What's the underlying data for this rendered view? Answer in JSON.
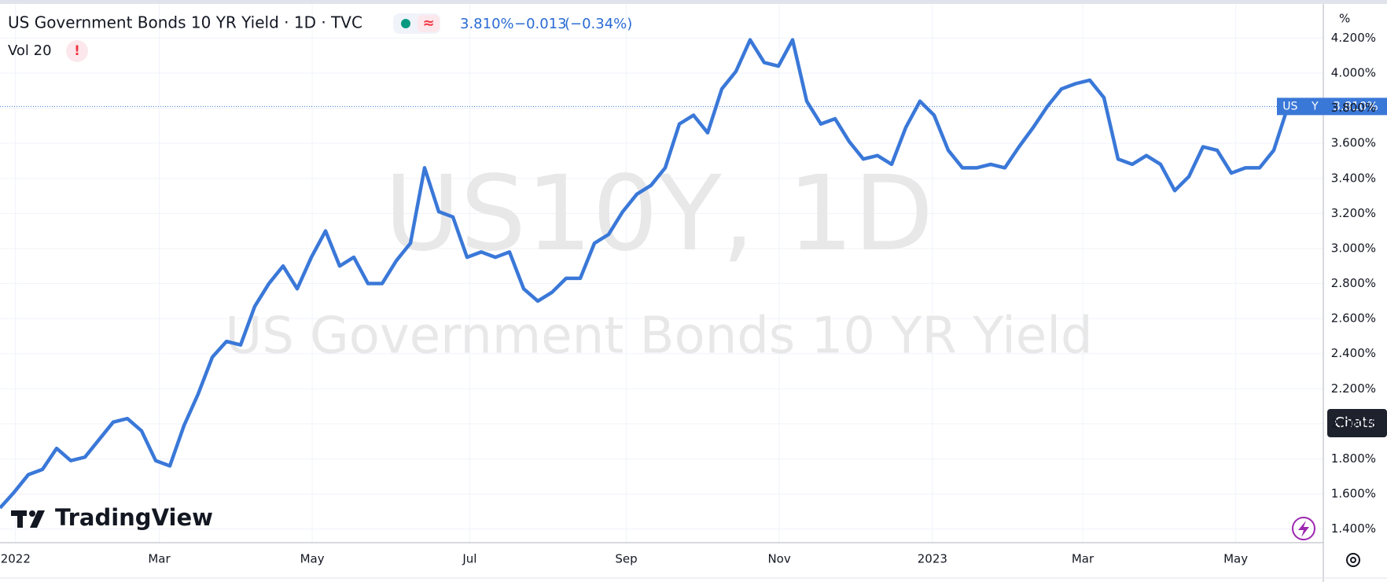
{
  "header": {
    "title": "US Government Bonds 10 YR Yield · 1D · TVC",
    "price": "3.810%",
    "change": "−0.013",
    "change_pct": "(−0.34%)",
    "indicator": "Vol 20",
    "indicator_alert": "!",
    "status_icon": "≈"
  },
  "chart_data": {
    "type": "line",
    "watermark": "US10Y, 1D",
    "watermark_subtitle": "US Government Bonds 10 YR Yield",
    "y_unit": "%",
    "series": [
      {
        "name": "US10Y",
        "color": "#3a78d8",
        "values": [
          1.52,
          1.61,
          1.71,
          1.74,
          1.86,
          1.79,
          1.81,
          1.91,
          2.01,
          2.03,
          1.96,
          1.79,
          1.76,
          1.99,
          2.17,
          2.38,
          2.47,
          2.45,
          2.67,
          2.8,
          2.9,
          2.77,
          2.95,
          3.1,
          2.9,
          2.95,
          2.8,
          2.8,
          2.93,
          3.03,
          3.46,
          3.21,
          3.18,
          2.95,
          2.98,
          2.95,
          2.98,
          2.77,
          2.7,
          2.75,
          2.83,
          2.83,
          3.03,
          3.08,
          3.21,
          3.31,
          3.36,
          3.46,
          3.71,
          3.76,
          3.66,
          3.91,
          4.01,
          4.19,
          4.06,
          4.04,
          4.19,
          3.84,
          3.71,
          3.74,
          3.61,
          3.51,
          3.53,
          3.48,
          3.69,
          3.84,
          3.76,
          3.56,
          3.46,
          3.46,
          3.48,
          3.46,
          3.58,
          3.69,
          3.81,
          3.91,
          3.94,
          3.96,
          3.86,
          3.51,
          3.48,
          3.53,
          3.48,
          3.33,
          3.41,
          3.58,
          3.56,
          3.43,
          3.46,
          3.46,
          3.56,
          3.81
        ]
      }
    ],
    "xlim": [
      0,
      93.5
    ],
    "xticks": [
      {
        "value": 1.1,
        "label": "2022"
      },
      {
        "value": 11.25,
        "label": "Mar"
      },
      {
        "value": 22.06,
        "label": "May"
      },
      {
        "value": 33.19,
        "label": "Jul"
      },
      {
        "value": 44.25,
        "label": "Sep"
      },
      {
        "value": 55.06,
        "label": "Nov"
      },
      {
        "value": 65.88,
        "label": "2023"
      },
      {
        "value": 76.5,
        "label": "Mar"
      },
      {
        "value": 87.31,
        "label": "May"
      }
    ],
    "ylim": [
      1.324,
      4.392
    ],
    "yticks": [
      {
        "value": 1.4,
        "label": "1.400%"
      },
      {
        "value": 1.6,
        "label": "1.600%"
      },
      {
        "value": 1.8,
        "label": "1.800%"
      },
      {
        "value": 2.0,
        "label": "2.000%"
      },
      {
        "value": 2.2,
        "label": "2.200%"
      },
      {
        "value": 2.4,
        "label": "2.400%"
      },
      {
        "value": 2.6,
        "label": "2.600%"
      },
      {
        "value": 2.8,
        "label": "2.800%"
      },
      {
        "value": 3.0,
        "label": "3.000%"
      },
      {
        "value": 3.2,
        "label": "3.200%"
      },
      {
        "value": 3.4,
        "label": "3.400%"
      },
      {
        "value": 3.6,
        "label": "3.600%"
      },
      {
        "value": 3.8,
        "label": "3.800%"
      },
      {
        "value": 4.0,
        "label": "4.000%"
      },
      {
        "value": 4.2,
        "label": "4.200%"
      }
    ],
    "grid": true,
    "last_value_label": "3.810%",
    "last_symbol_label": "US    Y"
  },
  "ui": {
    "logo": "TradingView",
    "chats_button": "Chats"
  }
}
